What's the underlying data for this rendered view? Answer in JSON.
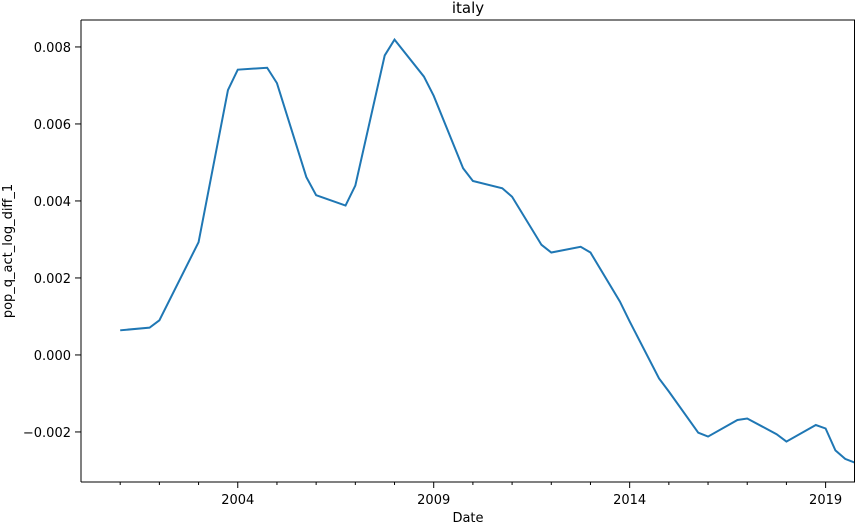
{
  "chart_data": {
    "type": "line",
    "title": "italy",
    "xlabel": "Date",
    "ylabel": "pop_q_act_log_diff_1",
    "xlim": [
      2000.0,
      2019.75
    ],
    "ylim": [
      -0.0033,
      0.0087
    ],
    "x_ticks": [
      {
        "value": 2004,
        "label": "2004"
      },
      {
        "value": 2009,
        "label": "2009"
      },
      {
        "value": 2014,
        "label": "2014"
      },
      {
        "value": 2019,
        "label": "2019"
      }
    ],
    "x_minor_ticks": [
      2001,
      2002,
      2003,
      2005,
      2006,
      2007,
      2008,
      2010,
      2011,
      2012,
      2013,
      2015,
      2016,
      2017,
      2018
    ],
    "y_ticks": [
      {
        "value": -0.002,
        "label": "−0.002"
      },
      {
        "value": 0.0,
        "label": "0.000"
      },
      {
        "value": 0.002,
        "label": "0.002"
      },
      {
        "value": 0.004,
        "label": "0.004"
      },
      {
        "value": 0.006,
        "label": "0.006"
      },
      {
        "value": 0.008,
        "label": "0.008"
      }
    ],
    "grid": false,
    "series": [
      {
        "color": "#1f77b4",
        "x": [
          2001.0,
          2001.75,
          2002.0,
          2003.0,
          2003.75,
          2004.0,
          2004.75,
          2005.0,
          2005.75,
          2006.0,
          2006.75,
          2007.0,
          2007.75,
          2008.0,
          2008.75,
          2009.0,
          2009.75,
          2010.0,
          2010.75,
          2011.0,
          2011.75,
          2012.0,
          2012.75,
          2013.0,
          2013.75,
          2014.0,
          2014.75,
          2015.0,
          2015.75,
          2016.0,
          2016.75,
          2017.0,
          2017.75,
          2018.0,
          2018.75,
          2019.0,
          2019.25,
          2019.5,
          2019.75
        ],
        "y": [
          0.00064,
          0.00071,
          0.0009,
          0.00293,
          0.00688,
          0.00741,
          0.00746,
          0.00706,
          0.00462,
          0.00415,
          0.00388,
          0.0044,
          0.00778,
          0.00819,
          0.00723,
          0.00673,
          0.00485,
          0.00452,
          0.00433,
          0.00411,
          0.00286,
          0.00266,
          0.00281,
          0.00266,
          0.00139,
          0.00087,
          -0.00061,
          -0.00095,
          -0.00202,
          -0.00212,
          -0.00169,
          -0.00165,
          -0.00206,
          -0.00225,
          -0.00182,
          -0.00191,
          -0.00248,
          -0.0027,
          -0.0028
        ]
      }
    ]
  }
}
